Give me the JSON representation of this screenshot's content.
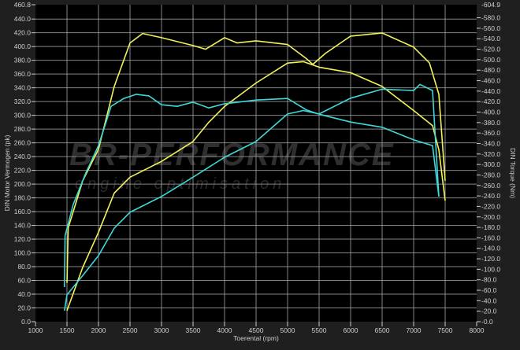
{
  "chart_data": {
    "type": "line",
    "xlabel": "Toerental (rpm)",
    "ylabel_left": "DIN Motor Vermogen (pk)",
    "ylabel_right": "DIN Torque (Nm)",
    "xlim": [
      1000,
      8000
    ],
    "xticks": [
      1000,
      1500,
      2000,
      2500,
      3000,
      3500,
      4000,
      4500,
      5000,
      5500,
      6000,
      6500,
      7000,
      7500,
      8000
    ],
    "ylim_left": [
      0,
      460.8
    ],
    "ylim_right": [
      0,
      604.9
    ],
    "left_top_label": "460.8",
    "right_top_label": "604.9",
    "grid": true,
    "watermark": {
      "line1": "BR-PERFORMANCE",
      "line2": "engine optimisation"
    },
    "colors": {
      "yellow": "#f2f25a",
      "cyan": "#3fd8d8",
      "plot_bg": "#000000",
      "page_bg": "#1f1f1f",
      "grid": "#b0b0b0"
    },
    "series": [
      {
        "color": "yellow",
        "axis": "right",
        "x": [
          1500,
          1520,
          1750,
          2000,
          2250,
          2500,
          2700,
          3000,
          3500,
          3700,
          4000,
          4200,
          4500,
          5000,
          5300,
          5400,
          5600,
          6000,
          6500,
          7000,
          7250,
          7400,
          7500
        ],
        "y": [
          74,
          179,
          269,
          329,
          449,
          532,
          550,
          542,
          527,
          520,
          542,
          532,
          536,
          529,
          502,
          491,
          512,
          545,
          551,
          524,
          494,
          434,
          269
        ]
      },
      {
        "color": "yellow",
        "axis": "left",
        "x": [
          1500,
          1750,
          2000,
          2250,
          2500,
          3000,
          3500,
          3750,
          4000,
          4500,
          5000,
          5250,
          5500,
          6000,
          6500,
          7000,
          7300,
          7400,
          7500
        ],
        "y": [
          16,
          79,
          130,
          187,
          210,
          233,
          262,
          290,
          313,
          347,
          376,
          378,
          370,
          362,
          342,
          307,
          285,
          250,
          176
        ]
      },
      {
        "color": "cyan",
        "axis": "right",
        "x": [
          1460,
          1470,
          1600,
          1800,
          2000,
          2200,
          2400,
          2600,
          2800,
          3000,
          3250,
          3500,
          3750,
          4000,
          4500,
          5000,
          5300,
          5500,
          6000,
          6500,
          7000,
          7300,
          7400
        ],
        "y": [
          66,
          164,
          224,
          284,
          336,
          411,
          426,
          434,
          431,
          414,
          411,
          419,
          408,
          416,
          423,
          426,
          404,
          396,
          381,
          371,
          347,
          336,
          239
        ]
      },
      {
        "color": "cyan",
        "axis": "left",
        "x": [
          1460,
          1500,
          1750,
          2000,
          2250,
          2500,
          3000,
          3500,
          4000,
          4500,
          5000,
          5250,
          5500,
          6000,
          6500,
          7000,
          7100,
          7300,
          7400
        ],
        "y": [
          16,
          39,
          67,
          96,
          136,
          159,
          182,
          210,
          239,
          262,
          302,
          307,
          302,
          325,
          338,
          336,
          345,
          336,
          182
        ]
      }
    ]
  }
}
